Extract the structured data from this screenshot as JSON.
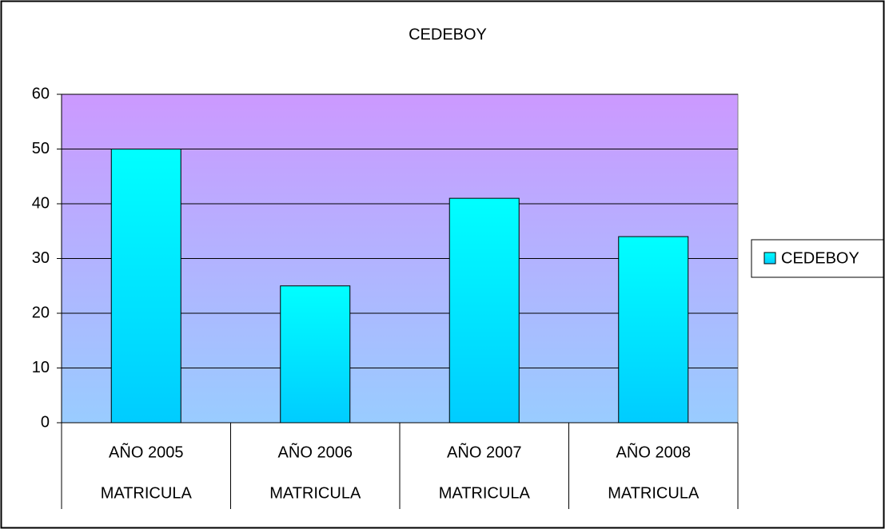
{
  "chart_data": {
    "type": "bar",
    "title": "CEDEBOY",
    "categories": [
      "AÑO 2005",
      "AÑO 2006",
      "AÑO 2007",
      "AÑO 2008"
    ],
    "subcategories": [
      "MATRICULA",
      "MATRICULA",
      "MATRICULA",
      "MATRICULA"
    ],
    "series": [
      {
        "name": "CEDEBOY",
        "color": "#00ffff",
        "values": [
          50,
          25,
          41,
          34
        ]
      }
    ],
    "ylim": [
      0,
      60
    ],
    "yticks": [
      0,
      10,
      20,
      30,
      40,
      50,
      60
    ],
    "grid": true,
    "legend": "right"
  }
}
